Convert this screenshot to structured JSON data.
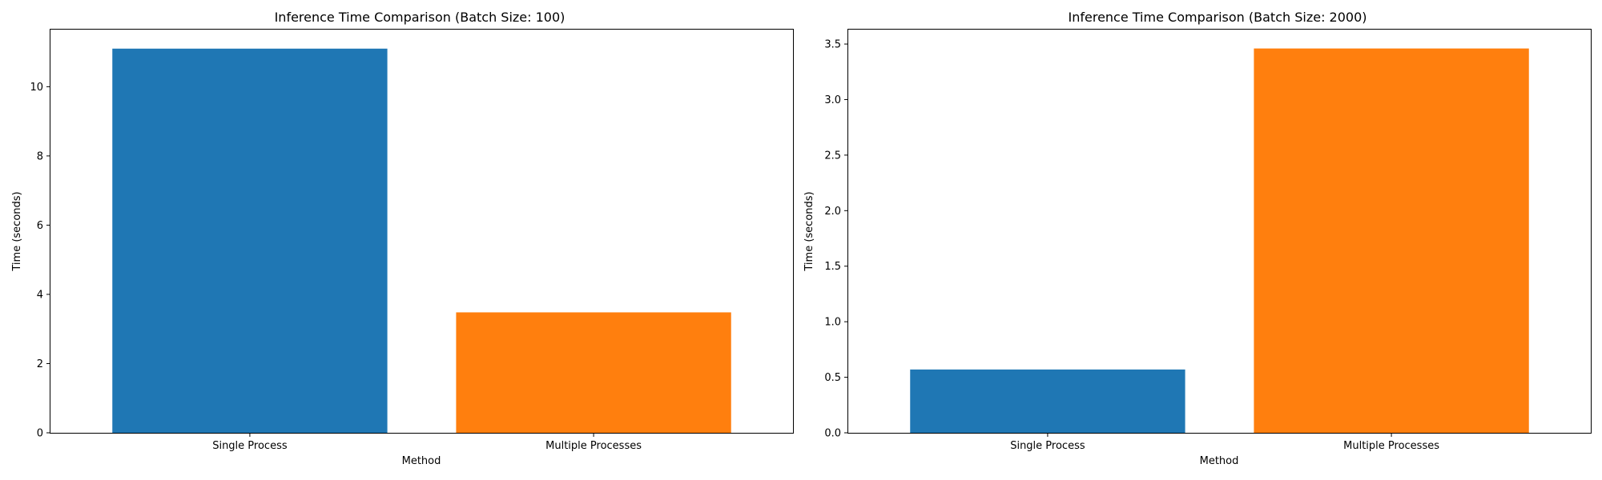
{
  "chart_data": [
    {
      "type": "bar",
      "title": "Inference Time Comparison (Batch Size: 100)",
      "xlabel": "Method",
      "ylabel": "Time (seconds)",
      "categories": [
        "Single Process",
        "Multiple Processes"
      ],
      "values": [
        11.1,
        3.48
      ],
      "colors": [
        "#1f77b4",
        "#ff7f0e"
      ],
      "ylim": [
        0,
        11.65
      ],
      "yticks": [
        0,
        2,
        4,
        6,
        8,
        10
      ],
      "ytick_labels": [
        "0",
        "2",
        "4",
        "6",
        "8",
        "10"
      ],
      "grid": false,
      "legend": "none"
    },
    {
      "type": "bar",
      "title": "Inference Time Comparison (Batch Size: 2000)",
      "xlabel": "Method",
      "ylabel": "Time (seconds)",
      "categories": [
        "Single Process",
        "Multiple Processes"
      ],
      "values": [
        0.57,
        3.46
      ],
      "colors": [
        "#1f77b4",
        "#ff7f0e"
      ],
      "ylim": [
        0,
        3.63
      ],
      "yticks": [
        0,
        0.5,
        1.0,
        1.5,
        2.0,
        2.5,
        3.0,
        3.5
      ],
      "ytick_labels": [
        "0.0",
        "0.5",
        "1.0",
        "1.5",
        "2.0",
        "2.5",
        "3.0",
        "3.5"
      ],
      "grid": false,
      "legend": "none"
    }
  ]
}
